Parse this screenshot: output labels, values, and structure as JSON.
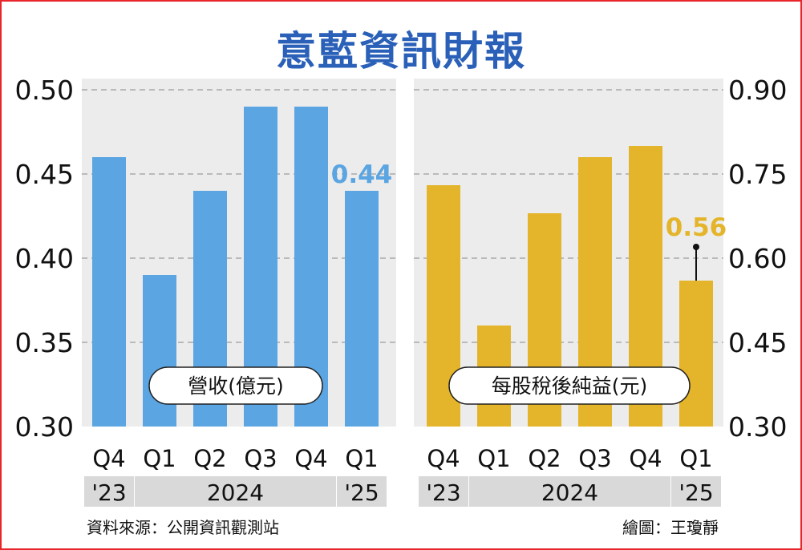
{
  "title": "意藍資訊財報",
  "source": "資料來源：公開資訊觀測站",
  "credit": "繪圖：王瓊靜",
  "colors": {
    "revenue": "#5aa5e2",
    "eps": "#e4b52a",
    "grid": "#aaaaaa",
    "panel": "#ececec",
    "period_band": "#d9d9d9"
  },
  "chart_data": [
    {
      "type": "bar",
      "title": "",
      "legend": "營收(億元)",
      "categories": [
        "Q4",
        "Q1",
        "Q2",
        "Q3",
        "Q4",
        "Q1"
      ],
      "period_labels": [
        {
          "label": "'23",
          "from": 0,
          "to": 0
        },
        {
          "label": "2024",
          "from": 1,
          "to": 4
        },
        {
          "label": "'25",
          "from": 5,
          "to": 5
        }
      ],
      "values": [
        0.46,
        0.39,
        0.44,
        0.49,
        0.49,
        0.44
      ],
      "ylim": [
        0.3,
        0.5
      ],
      "yticks": [
        "0.30",
        "0.35",
        "0.40",
        "0.45",
        "0.50"
      ],
      "axis_side": "left",
      "highlight_label": "0.44",
      "grid": true
    },
    {
      "type": "bar",
      "title": "",
      "legend": "每股稅後純益(元)",
      "categories": [
        "Q4",
        "Q1",
        "Q2",
        "Q3",
        "Q4",
        "Q1"
      ],
      "period_labels": [
        {
          "label": "'23",
          "from": 0,
          "to": 0
        },
        {
          "label": "2024",
          "from": 1,
          "to": 4
        },
        {
          "label": "'25",
          "from": 5,
          "to": 5
        }
      ],
      "values": [
        0.73,
        0.48,
        0.68,
        0.78,
        0.8,
        0.56
      ],
      "ylim": [
        0.3,
        0.9
      ],
      "yticks": [
        "0.30",
        "0.45",
        "0.60",
        "0.75",
        "0.90"
      ],
      "axis_side": "right",
      "highlight_label": "0.56",
      "grid": true
    }
  ]
}
